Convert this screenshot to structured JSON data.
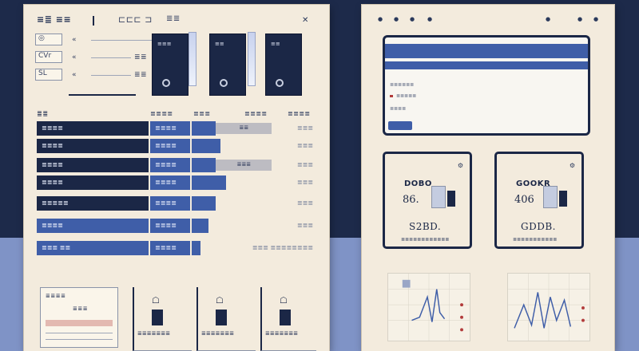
{
  "left": {
    "title": "≡≣ ≡≡",
    "title_2": "⊏⊏⊏ ⊐",
    "badge": "≣≣",
    "fields": [
      {
        "key": "◎",
        "label": "«",
        "value": ""
      },
      {
        "key": "CVr",
        "label": "«",
        "value": "≣≣"
      },
      {
        "key": "SL",
        "label": "«",
        "value": "≣≣"
      }
    ],
    "cards": [
      {
        "label": "≡≡≡"
      },
      {
        "label": "≡≡"
      },
      {
        "label": "≡≡"
      }
    ],
    "section_label": "≣≣",
    "table": {
      "headers": [
        "≣≣≣≣",
        "≣≣≣",
        "≣≣≣≣",
        "≣≣≣≣"
      ],
      "rows": [
        {
          "name": "≣≣≣≣",
          "code": "≣≣≣≣",
          "bar_pct": 20,
          "ghost": "≣≣",
          "value": "≣≣≣"
        },
        {
          "name": "≣≣≣≣",
          "code": "≣≣≣≣",
          "bar_pct": 24,
          "ghost": "",
          "value": "≣≣≣"
        },
        {
          "name": "≣≣≣≣",
          "code": "≣≣≣≣",
          "bar_pct": 20,
          "ghost": "≣≣≣",
          "value": "≣≣≣"
        },
        {
          "name": "≣≣≣≣",
          "code": "≣≣≣≣",
          "bar_pct": 28,
          "ghost": "",
          "value": "≣≣≣"
        },
        {
          "name": "≣≣≣≣≣",
          "code": "≣≣≣≣",
          "bar_pct": 20,
          "ghost": "",
          "value": "≣≣≣"
        },
        {
          "name": "≣≣≣≣",
          "code": "≣≣≣≣",
          "bar_pct": 14,
          "ghost": "",
          "value": "≣≣≣"
        },
        {
          "name": "≣≣≣ ≣≣",
          "code": "≣≣≣≣",
          "bar_pct": 7,
          "ghost": "",
          "value": "≣≣≣ ≣≣≣≣≣≣≣≣"
        }
      ]
    },
    "bottom": {
      "form_title": "≣≣≣≣",
      "form_item": "≣≣≣",
      "minis": [
        {
          "icon": "☖",
          "caption": "≣≣≣≣≣≣≣"
        },
        {
          "icon": "☖",
          "caption": "≣≣≣≣≣≣≣"
        },
        {
          "icon": "☖",
          "caption": "≣≣≣≣≣≣≣"
        }
      ]
    }
  },
  "right": {
    "window": {
      "rows": [
        "≣≣≣≣≣≣",
        "≣≣≣≣≣",
        "≣≣≣≣"
      ]
    },
    "stats": [
      {
        "label": "DOBO",
        "number": "86.",
        "big": "S2BD.",
        "caption": "≣≣≣≣≣≣≣≣≣≣≣≣"
      },
      {
        "label": "GOOKR",
        "number": "406",
        "big": "GDDB.",
        "caption": "≣≣≣≣≣≣≣≣≣≣≣"
      }
    ]
  }
}
